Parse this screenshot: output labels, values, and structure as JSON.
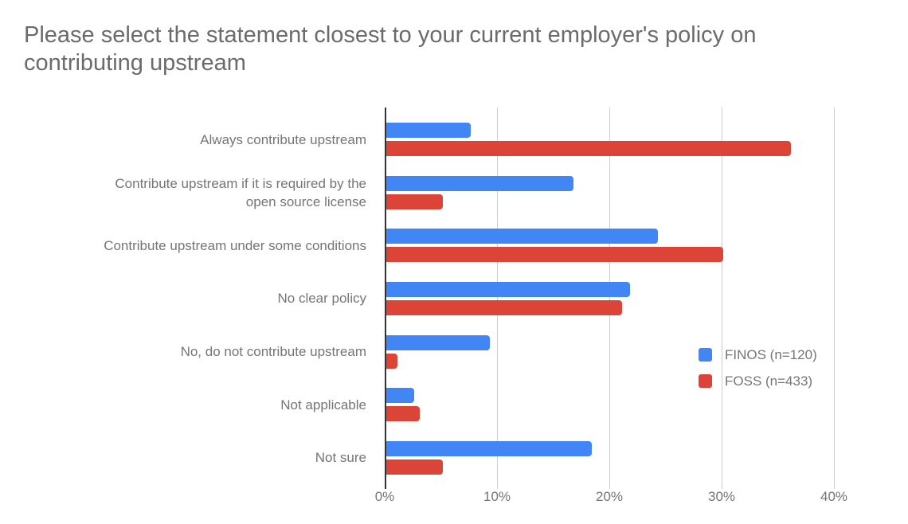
{
  "chart_data": {
    "type": "bar",
    "orientation": "horizontal",
    "title": "Please select the statement closest to your current employer's policy on\ncontributing upstream",
    "categories": [
      "Always contribute upstream",
      "Contribute upstream if it is required by the\nopen source license",
      "Contribute upstream under some conditions",
      "No clear policy",
      "No, do not contribute upstream",
      "Not applicable",
      "Not sure"
    ],
    "series": [
      {
        "name": "FINOS (n=120)",
        "key": "finos",
        "color": "#4285f4",
        "values": [
          7.5,
          16.7,
          24.2,
          21.7,
          9.2,
          2.5,
          18.3
        ]
      },
      {
        "name": "FOSS (n=433)",
        "key": "foss",
        "color": "#db4437",
        "values": [
          36,
          5,
          30,
          21,
          1,
          3,
          5
        ]
      }
    ],
    "xlabel": "",
    "ylabel": "",
    "xlim": [
      0,
      40
    ],
    "x_tick_labels": [
      "0%",
      "10%",
      "20%",
      "30%",
      "40%"
    ],
    "x_tick_values": [
      0,
      10,
      20,
      30,
      40
    ],
    "grid": true,
    "legend_position": "inside-right",
    "colors": {
      "background": "#ffffff",
      "title_text": "#6b6b6b",
      "label_text": "#757575",
      "gridline": "#cccccc",
      "axis_line": "#333333"
    }
  }
}
